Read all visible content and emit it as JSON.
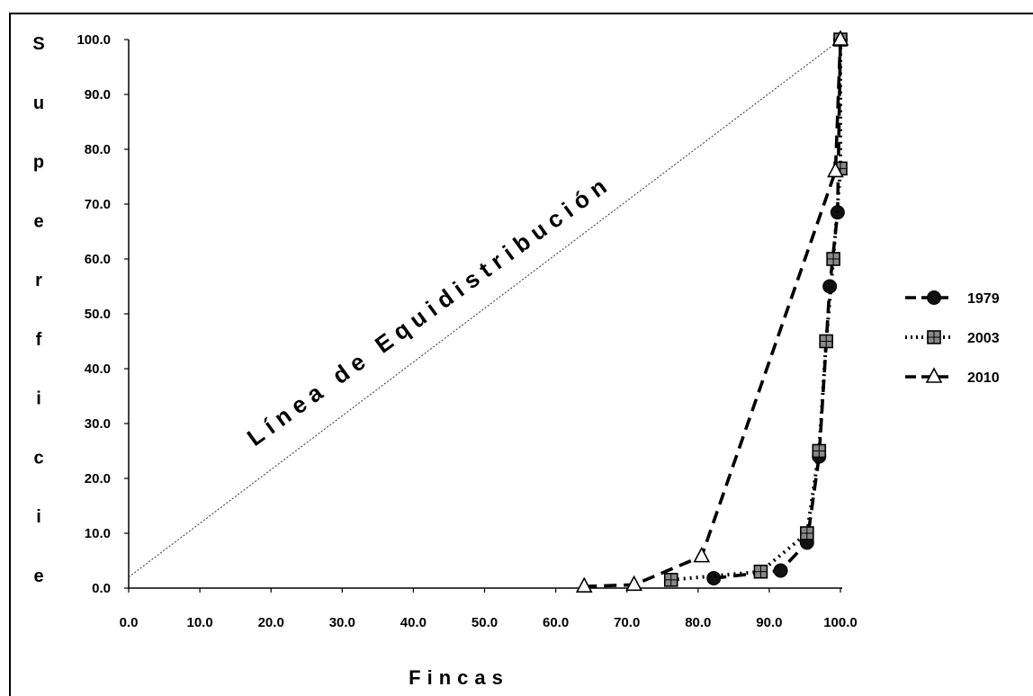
{
  "chart_data": {
    "type": "line",
    "xlabel": "Fincas",
    "ylabel": "Superficie",
    "annotation": "Línea de Equidistribución",
    "xlim": [
      0,
      100
    ],
    "ylim": [
      0,
      100
    ],
    "x_ticks": [
      "0.0",
      "10.0",
      "20.0",
      "30.0",
      "40.0",
      "50.0",
      "60.0",
      "70.0",
      "80.0",
      "90.0",
      "100.0"
    ],
    "y_ticks": [
      "0.0",
      "10.0",
      "20.0",
      "30.0",
      "40.0",
      "50.0",
      "60.0",
      "70.0",
      "80.0",
      "90.0",
      "100.0"
    ],
    "grid": false,
    "legend": "right",
    "reference_line": {
      "x": [
        0,
        100
      ],
      "y": [
        2,
        100
      ]
    },
    "series": [
      {
        "name": "1979",
        "marker": "circle",
        "line_style": "dashed",
        "x": [
          82.2,
          91.6,
          95.3,
          97.0,
          98.5,
          99.6,
          100.0
        ],
        "y": [
          1.8,
          3.2,
          8.3,
          24.0,
          55.0,
          68.5,
          100.0
        ]
      },
      {
        "name": "2003",
        "marker": "square",
        "line_style": "dotted",
        "x": [
          76.2,
          88.8,
          95.3,
          97.0,
          98.0,
          99.0,
          100.0,
          100.0
        ],
        "y": [
          1.5,
          3.0,
          10.0,
          25.0,
          45.0,
          60.0,
          76.5,
          100.0
        ]
      },
      {
        "name": "2010",
        "marker": "triangle",
        "line_style": "dashed",
        "x": [
          64.0,
          71.0,
          80.5,
          99.3,
          100.0
        ],
        "y": [
          0.3,
          0.6,
          5.8,
          76.0,
          100.0
        ]
      }
    ]
  }
}
